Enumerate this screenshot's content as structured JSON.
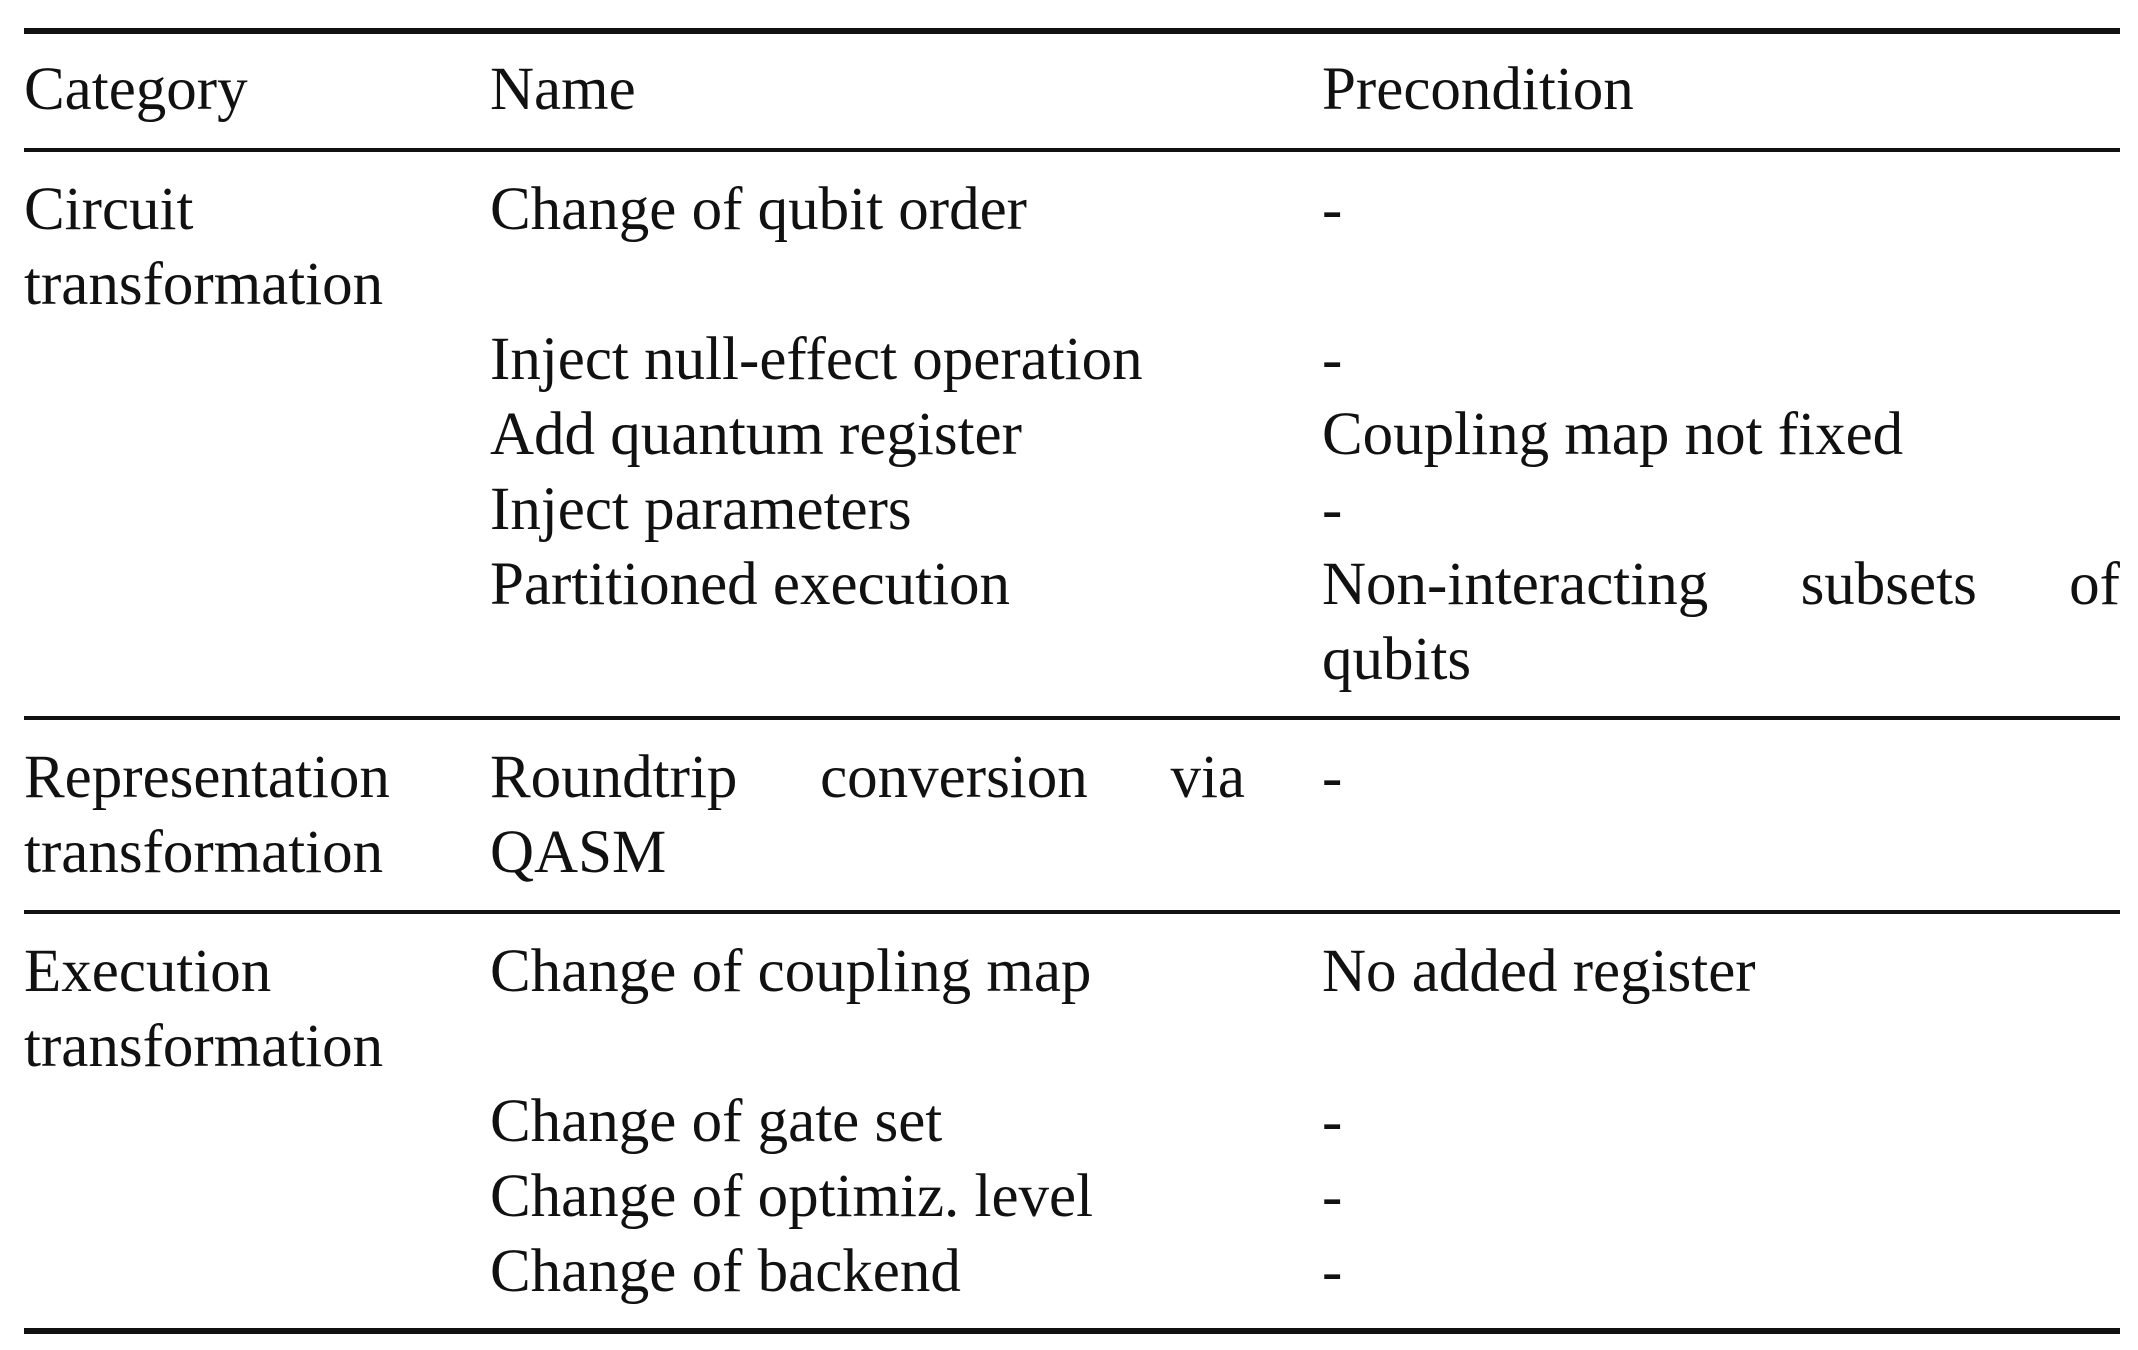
{
  "table": {
    "headers": {
      "category": "Category",
      "name": "Name",
      "precondition": "Precondition"
    },
    "groups": [
      {
        "category_line1": "Circuit",
        "category_line2": "transformation",
        "rows": [
          {
            "name": "Change of qubit order",
            "precondition": "-"
          },
          {
            "name": "Inject null-effect operation",
            "precondition": "-"
          },
          {
            "name": "Add quantum register",
            "precondition": "Coupling map not fixed"
          },
          {
            "name": "Inject parameters",
            "precondition": "-"
          },
          {
            "name": "Partitioned execution",
            "precondition_line1": [
              "Non-interacting",
              "subsets",
              "of"
            ],
            "precondition_line2": "qubits"
          }
        ]
      },
      {
        "category_line1": "Representation",
        "category_line2": "transformation",
        "rows": [
          {
            "name_line1": [
              "Roundtrip",
              "conversion",
              "via"
            ],
            "name_line2": "QASM",
            "precondition": "-"
          }
        ]
      },
      {
        "category_line1": "Execution",
        "category_line2": "transformation",
        "rows": [
          {
            "name": "Change of coupling map",
            "precondition": "No added register"
          },
          {
            "name": "Change of gate set",
            "precondition": "-"
          },
          {
            "name": "Change of optimiz. level",
            "precondition": "-"
          },
          {
            "name": "Change of backend",
            "precondition": "-"
          }
        ]
      }
    ]
  }
}
